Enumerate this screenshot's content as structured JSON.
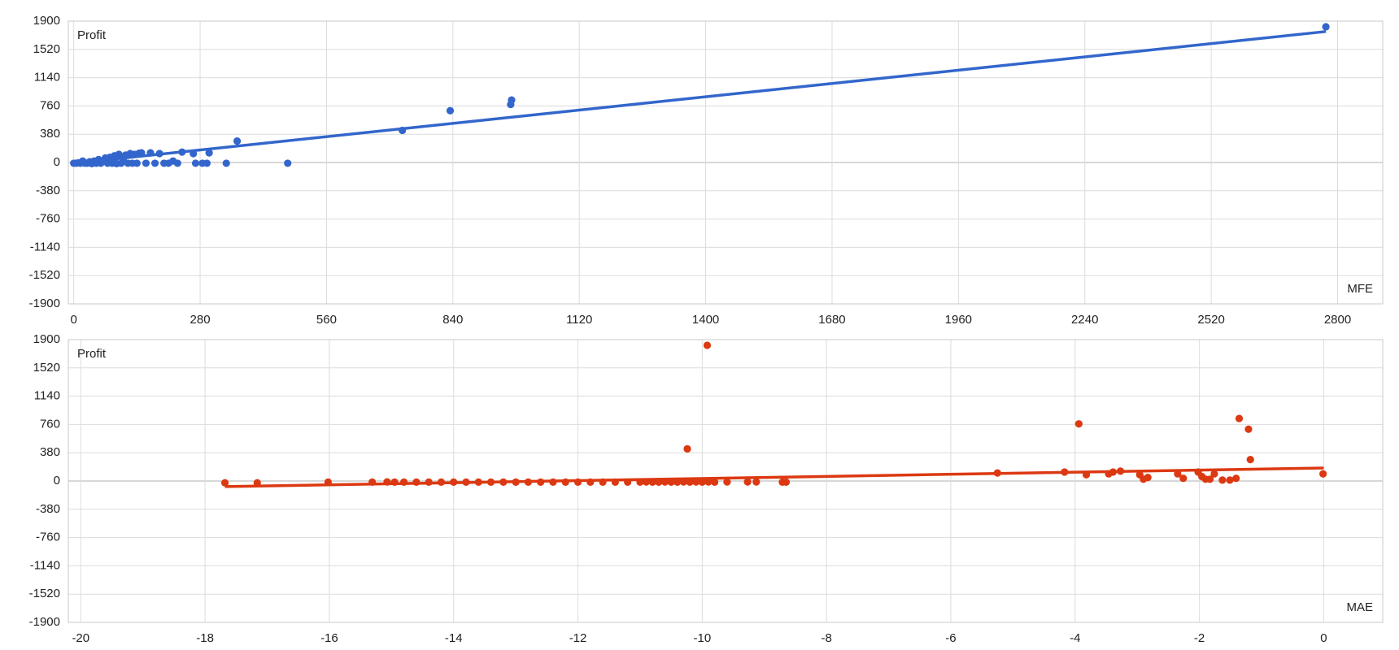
{
  "chart_data": [
    {
      "type": "scatter",
      "x_label": "MFE",
      "y_label": "Profit",
      "color": "#3366cc",
      "grid": true,
      "xlim": [
        -12,
        2900
      ],
      "xticks": [
        0,
        280,
        560,
        840,
        1120,
        1400,
        1680,
        1960,
        2240,
        2520,
        2800
      ],
      "ylim": [
        -1900,
        1900
      ],
      "yticks": [
        1900,
        1520,
        1140,
        760,
        380,
        0,
        -380,
        -760,
        -1140,
        -1520,
        -1900
      ],
      "x": [
        0,
        5,
        10,
        15,
        20,
        25,
        30,
        35,
        40,
        45,
        50,
        55,
        60,
        65,
        70,
        75,
        80,
        85,
        90,
        95,
        100,
        105,
        110,
        115,
        120,
        125,
        130,
        135,
        140,
        145,
        150,
        160,
        170,
        180,
        190,
        200,
        210,
        220,
        230,
        240,
        265,
        270,
        285,
        295,
        300,
        338,
        362,
        474,
        728,
        834,
        968,
        970,
        2774
      ],
      "values": [
        -10,
        -10,
        -5,
        -10,
        20,
        -10,
        -10,
        10,
        -15,
        20,
        -10,
        40,
        -10,
        15,
        60,
        -10,
        70,
        -10,
        90,
        -15,
        110,
        -10,
        60,
        100,
        -10,
        120,
        -10,
        110,
        -10,
        125,
        130,
        -10,
        130,
        -10,
        120,
        -10,
        -10,
        20,
        -10,
        140,
        120,
        -10,
        -10,
        -10,
        130,
        -10,
        288,
        -10,
        432,
        696,
        780,
        840,
        1824
      ],
      "trendline": {
        "x": [
          0,
          2774
        ],
        "values": [
          -10,
          1760
        ]
      }
    },
    {
      "type": "scatter",
      "x_label": "MAE",
      "y_label": "Profit",
      "color": "#dc3912",
      "grid": true,
      "xlim": [
        -20.2,
        0.95
      ],
      "xticks": [
        -20,
        -18,
        -16,
        -14,
        -12,
        -10,
        -8,
        -6,
        -4,
        -2,
        0
      ],
      "ylim": [
        -1900,
        1900
      ],
      "yticks": [
        1900,
        1520,
        1140,
        760,
        380,
        0,
        -380,
        -760,
        -1140,
        -1520,
        -1900
      ],
      "x": [
        -17.68,
        -17.16,
        -16.02,
        -15.31,
        -15.07,
        -14.95,
        -14.8,
        -14.6,
        -14.4,
        -14.2,
        -14.0,
        -13.8,
        -13.6,
        -13.4,
        -13.2,
        -13.0,
        -12.8,
        -12.6,
        -12.4,
        -12.2,
        -12.0,
        -11.8,
        -11.6,
        -11.4,
        -11.2,
        -11.0,
        -10.9,
        -10.8,
        -10.7,
        -10.6,
        -10.5,
        -10.4,
        -10.3,
        -10.24,
        -10.2,
        -10.1,
        -10.0,
        -9.92,
        -9.9,
        -9.8,
        -9.6,
        -9.27,
        -9.13,
        -8.71,
        -8.65,
        -5.25,
        -4.17,
        -3.94,
        -3.82,
        -3.46,
        -3.39,
        -3.27,
        -2.96,
        -2.9,
        -2.83,
        -2.35,
        -2.26,
        -2.02,
        -1.96,
        -1.9,
        -1.83,
        -1.76,
        -1.63,
        -1.51,
        -1.41,
        -1.36,
        -1.21,
        -1.18,
        -0.01
      ],
      "values": [
        -24,
        -24,
        -15,
        -15,
        -12,
        -15,
        -15,
        -15,
        -15,
        -15,
        -15,
        -15,
        -15,
        -15,
        -15,
        -15,
        -15,
        -15,
        -15,
        -15,
        -15,
        -15,
        -15,
        -15,
        -15,
        -15,
        -12,
        -15,
        -15,
        -12,
        -15,
        -15,
        -12,
        432,
        -15,
        -12,
        -15,
        1824,
        -12,
        -15,
        -12,
        -12,
        -12,
        -15,
        -15,
        108,
        120,
        768,
        84,
        96,
        120,
        132,
        84,
        24,
        48,
        96,
        36,
        120,
        60,
        24,
        24,
        96,
        12,
        12,
        36,
        840,
        696,
        288,
        96
      ],
      "trendline": {
        "x": [
          -17.68,
          0
        ],
        "values": [
          -75,
          175
        ]
      }
    }
  ]
}
